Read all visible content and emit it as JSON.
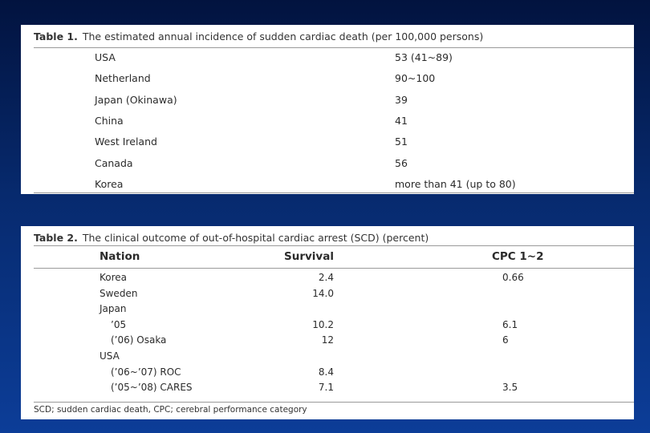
{
  "table1": {
    "label": "Table 1.",
    "title": "The estimated annual incidence of sudden cardiac death (per 100,000 persons)",
    "rows": [
      {
        "country": "USA",
        "value": "53 (41~89)"
      },
      {
        "country": "Netherland",
        "value": "90~100"
      },
      {
        "country": "Japan (Okinawa)",
        "value": "39"
      },
      {
        "country": "China",
        "value": "41"
      },
      {
        "country": "West Ireland",
        "value": "51"
      },
      {
        "country": "Canada",
        "value": "56"
      },
      {
        "country": "Korea",
        "value": "more than 41 (up to 80)"
      }
    ]
  },
  "table2": {
    "label": "Table 2.",
    "title": "The clinical outcome of out-of-hospital cardiac arrest (SCD) (percent)",
    "headers": {
      "nation": "Nation",
      "survival": "Survival",
      "cpc": "CPC 1~2"
    },
    "rows": [
      {
        "nation": "Korea",
        "survival": "2.4",
        "cpc": "0.66",
        "indent": 0
      },
      {
        "nation": "Sweden",
        "survival": "14.0",
        "cpc": "",
        "indent": 0
      },
      {
        "nation": "Japan",
        "survival": "",
        "cpc": "",
        "indent": 0
      },
      {
        "nation": "’05",
        "survival": "10.2",
        "cpc": "6.1",
        "indent": 1
      },
      {
        "nation": "(’06) Osaka",
        "survival": "12",
        "cpc": "6",
        "indent": 1
      },
      {
        "nation": "USA",
        "survival": "",
        "cpc": "",
        "indent": 0
      },
      {
        "nation": "(’06~’07) ROC",
        "survival": "8.4",
        "cpc": "",
        "indent": 1
      },
      {
        "nation": "(’05~’08) CARES",
        "survival": "7.1",
        "cpc": "3.5",
        "indent": 1
      }
    ],
    "footnote": "SCD; sudden cardiac death, CPC; cerebral performance category"
  }
}
